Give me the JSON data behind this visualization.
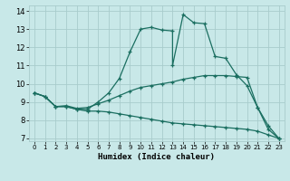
{
  "xlabel": "Humidex (Indice chaleur)",
  "xlim": [
    -0.5,
    23.5
  ],
  "ylim": [
    6.85,
    14.3
  ],
  "yticks": [
    7,
    8,
    9,
    10,
    11,
    12,
    13,
    14
  ],
  "xticks": [
    0,
    1,
    2,
    3,
    4,
    5,
    6,
    7,
    8,
    9,
    10,
    11,
    12,
    13,
    14,
    15,
    16,
    17,
    18,
    19,
    20,
    21,
    22,
    23
  ],
  "bg_color": "#c8e8e8",
  "grid_color": "#a8cccc",
  "line_color": "#1a6e60",
  "lines": [
    {
      "x": [
        0,
        1,
        2,
        3,
        4,
        5,
        6,
        7,
        8,
        9,
        10,
        11,
        12,
        13,
        13,
        14,
        15,
        16,
        17,
        18,
        19,
        20,
        21,
        22,
        23
      ],
      "y": [
        9.5,
        9.3,
        8.75,
        8.75,
        8.6,
        8.6,
        9.0,
        9.5,
        10.3,
        11.75,
        13.0,
        13.1,
        12.95,
        12.9,
        11.0,
        13.8,
        13.35,
        13.3,
        11.5,
        11.4,
        10.5,
        9.9,
        8.7,
        7.5,
        7.0
      ]
    },
    {
      "x": [
        0,
        1,
        2,
        3,
        4,
        5,
        6,
        7,
        8,
        9,
        10,
        11,
        12,
        13,
        14,
        15,
        16,
        17,
        18,
        19,
        20,
        21,
        22,
        23
      ],
      "y": [
        9.5,
        9.3,
        8.75,
        8.8,
        8.65,
        8.7,
        8.9,
        9.1,
        9.35,
        9.6,
        9.8,
        9.9,
        10.0,
        10.1,
        10.25,
        10.35,
        10.45,
        10.45,
        10.45,
        10.4,
        10.35,
        8.7,
        7.7,
        7.0
      ]
    },
    {
      "x": [
        0,
        1,
        2,
        3,
        4,
        5,
        6,
        7,
        8,
        9,
        10,
        11,
        12,
        13,
        14,
        15,
        16,
        17,
        18,
        19,
        20,
        21,
        22,
        23
      ],
      "y": [
        9.5,
        9.3,
        8.75,
        8.75,
        8.6,
        8.5,
        8.5,
        8.45,
        8.35,
        8.25,
        8.15,
        8.05,
        7.95,
        7.85,
        7.8,
        7.75,
        7.7,
        7.65,
        7.6,
        7.55,
        7.5,
        7.4,
        7.2,
        7.0
      ]
    }
  ]
}
